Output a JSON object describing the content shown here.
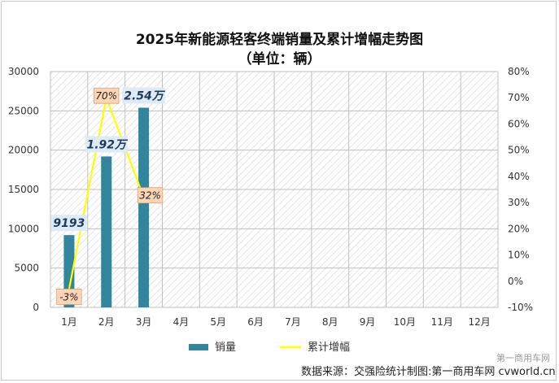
{
  "chart_data": {
    "type": "bar+line",
    "title": "2025年新能源轻客终端销量及累计增幅走势图",
    "subtitle": "（单位：辆）",
    "categories": [
      "1月",
      "2月",
      "3月",
      "4月",
      "5月",
      "6月",
      "7月",
      "8月",
      "9月",
      "10月",
      "11月",
      "12月"
    ],
    "series": [
      {
        "name": "销量",
        "type": "bar",
        "axis": "left",
        "color": "#31859c",
        "values": [
          9193,
          19200,
          25400,
          null,
          null,
          null,
          null,
          null,
          null,
          null,
          null,
          null
        ],
        "data_labels": [
          "9193",
          "1.92万",
          "2.54万"
        ]
      },
      {
        "name": "累计增幅",
        "type": "line",
        "axis": "right",
        "color": "#ffff00",
        "values": [
          -3,
          70,
          32,
          null,
          null,
          null,
          null,
          null,
          null,
          null,
          null,
          null
        ],
        "data_labels": [
          "-3%",
          "70%",
          "32%"
        ]
      }
    ],
    "y_left": {
      "min": 0,
      "max": 30000,
      "ticks": [
        "0",
        "5000",
        "10000",
        "15000",
        "20000",
        "25000",
        "30000"
      ]
    },
    "y_right": {
      "min": -10,
      "max": 80,
      "ticks": [
        "-10%",
        "0%",
        "10%",
        "20%",
        "30%",
        "40%",
        "50%",
        "60%",
        "70%",
        "80%"
      ]
    },
    "grid": true,
    "legend_position": "bottom"
  },
  "footer": {
    "source": "数据来源：交强险统计制图:第一商用车网 cvworld.cn",
    "watermark": "第一商用车网"
  }
}
